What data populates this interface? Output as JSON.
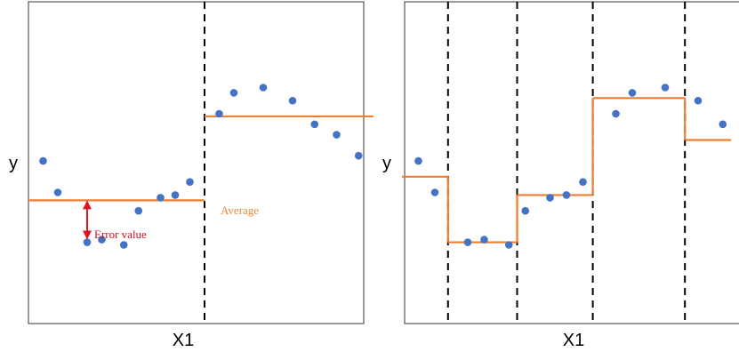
{
  "left_panel": {
    "ylabel": "y",
    "xlabel": "X1",
    "average_label": "Average",
    "error_label": "Error value"
  },
  "right_panel": {
    "ylabel": "y",
    "xlabel": "X1"
  },
  "colors": {
    "points": "#4472c4",
    "fit_line": "#ed7d31",
    "error_arrow": "#e0141e",
    "split_line": "#000000",
    "frame": "#333333"
  },
  "chart_data": [
    {
      "type": "scatter",
      "title": "",
      "xlabel": "X1",
      "ylabel": "y",
      "grid": false,
      "points": [
        {
          "x": 1,
          "y": 6.2
        },
        {
          "x": 2,
          "y": 5.0
        },
        {
          "x": 4,
          "y": 3.1
        },
        {
          "x": 5,
          "y": 3.2
        },
        {
          "x": 6.5,
          "y": 3.0
        },
        {
          "x": 7.5,
          "y": 4.3
        },
        {
          "x": 9,
          "y": 4.8
        },
        {
          "x": 10,
          "y": 4.9
        },
        {
          "x": 11,
          "y": 5.4
        },
        {
          "x": 13,
          "y": 8.0
        },
        {
          "x": 14,
          "y": 8.8
        },
        {
          "x": 16,
          "y": 9.0
        },
        {
          "x": 18,
          "y": 8.5
        },
        {
          "x": 19.5,
          "y": 7.6
        },
        {
          "x": 21,
          "y": 7.2
        },
        {
          "x": 22.5,
          "y": 6.4
        }
      ],
      "splits_x": [
        12
      ],
      "segments": [
        {
          "x0": 0,
          "x1": 12,
          "y": 4.7
        },
        {
          "x0": 12,
          "x1": 23.5,
          "y": 7.9
        }
      ],
      "error_marker": {
        "x": 4,
        "y_from": 4.7,
        "y_to": 3.1
      }
    },
    {
      "type": "scatter",
      "title": "",
      "xlabel": "X1",
      "ylabel": "y",
      "grid": false,
      "points": [
        {
          "x": 1,
          "y": 6.2
        },
        {
          "x": 2,
          "y": 5.0
        },
        {
          "x": 4,
          "y": 3.1
        },
        {
          "x": 5,
          "y": 3.2
        },
        {
          "x": 6.5,
          "y": 3.0
        },
        {
          "x": 7.5,
          "y": 4.3
        },
        {
          "x": 9,
          "y": 4.8
        },
        {
          "x": 10,
          "y": 4.9
        },
        {
          "x": 11,
          "y": 5.4
        },
        {
          "x": 13,
          "y": 8.0
        },
        {
          "x": 14,
          "y": 8.8
        },
        {
          "x": 16,
          "y": 9.0
        },
        {
          "x": 18,
          "y": 8.5
        },
        {
          "x": 19.5,
          "y": 7.6
        },
        {
          "x": 21,
          "y": 7.2
        },
        {
          "x": 22.5,
          "y": 6.4
        }
      ],
      "splits_x": [
        2.8,
        7,
        11.6,
        17.2
      ],
      "segments": [
        {
          "x0": 0,
          "x1": 2.8,
          "y": 5.6
        },
        {
          "x0": 2.8,
          "x1": 7,
          "y": 3.1
        },
        {
          "x0": 7,
          "x1": 11.6,
          "y": 4.9
        },
        {
          "x0": 11.6,
          "x1": 17.2,
          "y": 8.6
        },
        {
          "x0": 17.2,
          "x1": 20,
          "y": 7.0
        }
      ]
    }
  ]
}
